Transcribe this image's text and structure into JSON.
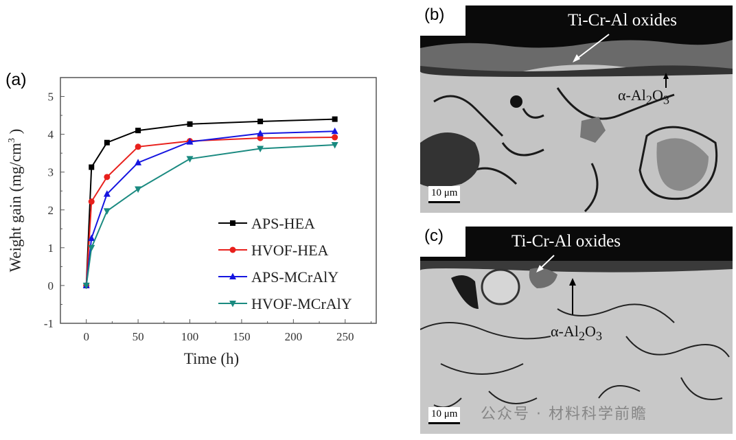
{
  "chart_data": {
    "type": "line",
    "panel_label": "(a)",
    "xlabel": "Time (h)",
    "ylabel": "Weight gain (mg/cm",
    "ylabel_sup": "3",
    "ylabel_end": ")",
    "xlim": [
      -25,
      280
    ],
    "ylim": [
      -1,
      5.5
    ],
    "xticks": [
      0,
      50,
      100,
      150,
      200,
      250
    ],
    "yticks": [
      -1,
      0,
      1,
      2,
      3,
      4,
      5
    ],
    "grid": false,
    "legend_position": "bottom-right",
    "x": [
      0,
      5,
      20,
      50,
      100,
      168,
      240
    ],
    "series": [
      {
        "name": "APS-HEA",
        "color": "#000000",
        "marker": "square",
        "values": [
          0,
          3.13,
          3.78,
          4.1,
          4.27,
          4.34,
          4.4
        ]
      },
      {
        "name": "HVOF-HEA",
        "color": "#e8201c",
        "marker": "circle",
        "values": [
          0,
          2.22,
          2.87,
          3.67,
          3.82,
          3.9,
          3.92
        ]
      },
      {
        "name": "APS-MCrAlY",
        "color": "#1515e0",
        "marker": "triangle-up",
        "values": [
          0,
          1.25,
          2.42,
          3.25,
          3.8,
          4.02,
          4.08
        ]
      },
      {
        "name": "HVOF-MCrAlY",
        "color": "#1a8a80",
        "marker": "triangle-down",
        "values": [
          0,
          1.0,
          1.97,
          2.55,
          3.35,
          3.62,
          3.72
        ]
      }
    ]
  },
  "micrographs": [
    {
      "label": "(b)",
      "oxide_label": "Ti-Cr-Al oxides",
      "alumina_prefix": "α-Al",
      "alumina_sub1": "2",
      "alumina_mid": "O",
      "alumina_sub2": "3",
      "scale": "10 μm"
    },
    {
      "label": "(c)",
      "oxide_label": "Ti-Cr-Al oxides",
      "alumina_prefix": "α-Al",
      "alumina_sub1": "2",
      "alumina_mid": "O",
      "alumina_sub2": "3",
      "scale": "10 μm"
    }
  ],
  "watermark": "公众号 · 材料科学前瞻"
}
